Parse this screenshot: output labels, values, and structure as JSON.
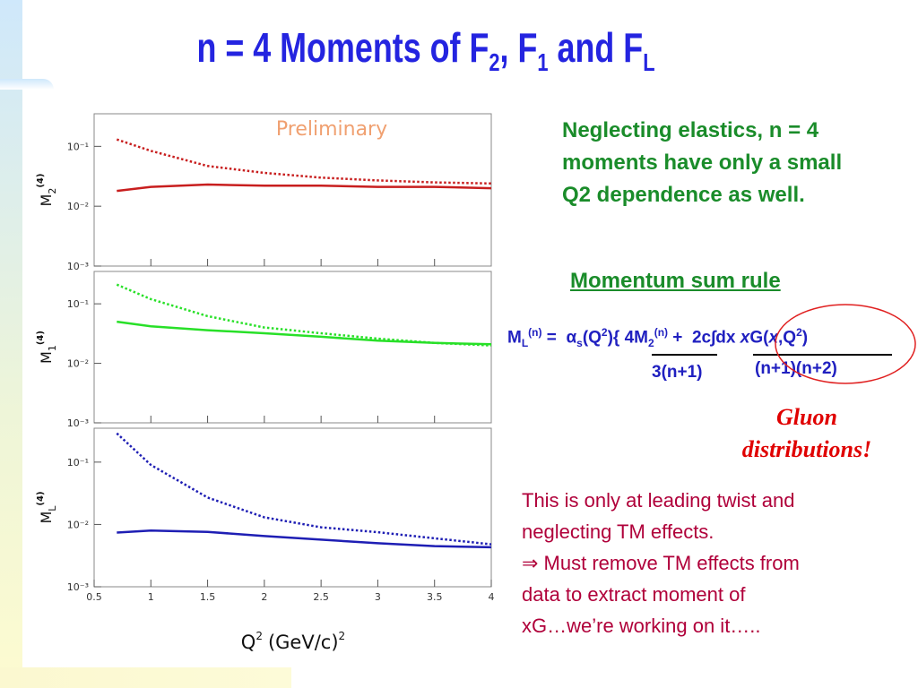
{
  "slide": {
    "title": [
      "n = 4 Moments of F",
      "2",
      ", F",
      "1",
      " and F",
      "L"
    ],
    "note": [
      "Neglecting elastics, n = 4",
      "moments have only a small",
      "Q2 dependence as well."
    ],
    "sum_rule_heading": "Momentum sum rule",
    "formula": {
      "m": "M",
      "m_sub": "L",
      "m_sup": "(n)",
      "eq": " =  ",
      "alpha": "α",
      "alpha_sub": "s",
      "q": "(Q",
      "q_sup": "2",
      "num1": "){ 4M",
      "num1_sub": "2",
      "num1_sup": "(n)",
      "plus": " +  2c∫dx ",
      "x1": "x",
      "g": "G(",
      "x2": "x",
      "q2": ",Q",
      "q2_sup": "2",
      "close": ")",
      "den1": "3(n+1)",
      "den2": "(n+1)(n+2)"
    },
    "gluon": [
      "Gluon",
      "distributions!"
    ],
    "caveat": [
      "This is only at leading twist and",
      "neglecting TM effects.",
      "⇒  Must remove TM effects from",
      "data to extract moment of",
      "xG…we’re working on it….."
    ]
  },
  "chart_data": [
    {
      "type": "line",
      "annotation": "Preliminary",
      "y_label": {
        "main": "M",
        "sub": "2",
        "sup": "(4)"
      },
      "x": [
        0.7,
        1,
        1.5,
        2,
        2.5,
        3,
        3.5,
        4
      ],
      "series": [
        {
          "color": "#c81e1e",
          "style": "dotted",
          "values": [
            0.13,
            0.084,
            0.047,
            0.036,
            0.03,
            0.027,
            0.025,
            0.024
          ]
        },
        {
          "color": "#c81e1e",
          "style": "solid",
          "values": [
            0.018,
            0.021,
            0.023,
            0.022,
            0.022,
            0.021,
            0.021,
            0.02
          ]
        }
      ],
      "xlim": [
        0.5,
        4
      ],
      "ylim": [
        0.001,
        0.35
      ],
      "log_y": true,
      "xticks": [
        1,
        1.5,
        2,
        2.5,
        3,
        3.5
      ],
      "yticks": [
        {
          "value": 0.001,
          "label": "10⁻³"
        },
        {
          "value": 0.01,
          "label": "10⁻²"
        },
        {
          "value": 0.1,
          "label": "10⁻¹"
        }
      ]
    },
    {
      "type": "line",
      "y_label": {
        "main": "M",
        "sub": "1",
        "sup": "(4)"
      },
      "x": [
        0.7,
        1,
        1.5,
        2,
        2.5,
        3,
        3.5,
        4
      ],
      "series": [
        {
          "color": "#28e028",
          "style": "dotted",
          "values": [
            0.21,
            0.12,
            0.062,
            0.04,
            0.032,
            0.026,
            0.022,
            0.02
          ]
        },
        {
          "color": "#28e028",
          "style": "solid",
          "values": [
            0.05,
            0.042,
            0.036,
            0.032,
            0.028,
            0.024,
            0.022,
            0.021
          ]
        }
      ],
      "xlim": [
        0.5,
        4
      ],
      "ylim": [
        0.001,
        0.35
      ],
      "log_y": true,
      "xticks": [
        1,
        1.5,
        2,
        2.5,
        3,
        3.5
      ],
      "yticks": [
        {
          "value": 0.001,
          "label": "10⁻³"
        },
        {
          "value": 0.01,
          "label": "10⁻²"
        },
        {
          "value": 0.1,
          "label": "10⁻¹"
        }
      ]
    },
    {
      "type": "line",
      "y_label": {
        "main": "M",
        "sub": "L",
        "sup": "(4)"
      },
      "x_label": {
        "main": "Q",
        "sup": "2",
        "unit": "(GeV/c)",
        "unit_sup": "2"
      },
      "x": [
        0.7,
        1,
        1.5,
        2,
        2.5,
        3,
        3.5,
        4
      ],
      "series": [
        {
          "color": "#1e1eb4",
          "style": "dotted",
          "values": [
            0.29,
            0.09,
            0.027,
            0.013,
            0.009,
            0.0075,
            0.006,
            0.0048
          ]
        },
        {
          "color": "#1e1eb4",
          "style": "solid",
          "values": [
            0.0074,
            0.008,
            0.0076,
            0.0065,
            0.0057,
            0.005,
            0.0045,
            0.0043
          ]
        }
      ],
      "xlim": [
        0.5,
        4
      ],
      "ylim": [
        0.001,
        0.35
      ],
      "log_y": true,
      "xticks": [
        0.5,
        1,
        1.5,
        2,
        2.5,
        3,
        3.5,
        4
      ],
      "yticks": [
        {
          "value": 0.001,
          "label": "10⁻³"
        },
        {
          "value": 0.01,
          "label": "10⁻²"
        },
        {
          "value": 0.1,
          "label": "10⁻¹"
        }
      ]
    }
  ]
}
